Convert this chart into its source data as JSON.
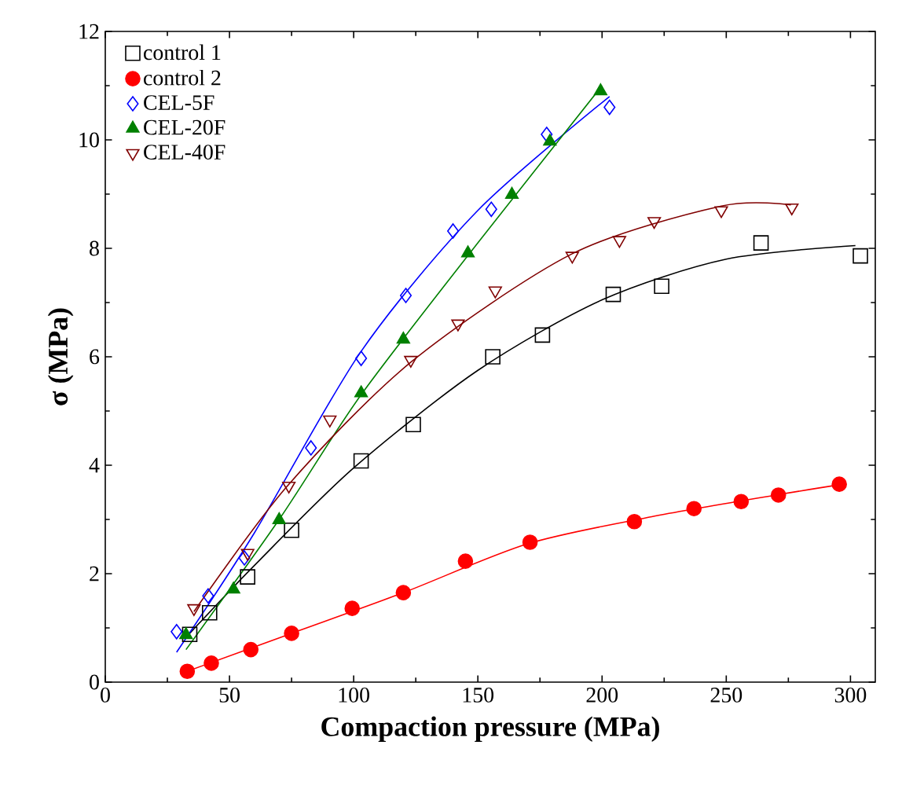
{
  "chart_data": {
    "type": "scatter",
    "xlabel": "Compaction pressure (MPa)",
    "ylabel": "σ (MPa)",
    "xlim": [
      0,
      310
    ],
    "ylim": [
      0,
      12
    ],
    "xticks": [
      0,
      50,
      100,
      150,
      200,
      250,
      300
    ],
    "yticks": [
      0,
      2,
      4,
      6,
      8,
      10,
      12
    ],
    "legend": "top left",
    "grid": false,
    "series": [
      {
        "name": "control 1",
        "color": "#000000",
        "marker": "square",
        "x": [
          34,
          42,
          57.3,
          75,
          103,
          124,
          156,
          176,
          204.5,
          224,
          264,
          304
        ],
        "values": [
          0.88,
          1.28,
          1.94,
          2.8,
          4.08,
          4.75,
          6.0,
          6.4,
          7.15,
          7.3,
          8.1,
          7.86
        ]
      },
      {
        "name": "control 2",
        "color": "#ff0000",
        "marker": "circle",
        "x": [
          33,
          42.7,
          58.6,
          75,
          99.4,
          120,
          145,
          171,
          213,
          237,
          256,
          271,
          295.5
        ],
        "values": [
          0.2,
          0.35,
          0.6,
          0.9,
          1.36,
          1.65,
          2.23,
          2.58,
          2.96,
          3.2,
          3.33,
          3.45,
          3.65
        ]
      },
      {
        "name": "CEL-5F",
        "color": "#0000ff",
        "marker": "diamond",
        "x": [
          28.7,
          41.4,
          56,
          82.8,
          103,
          121,
          140,
          155.4,
          177.7,
          203
        ],
        "values": [
          0.93,
          1.59,
          2.29,
          4.32,
          5.97,
          7.13,
          8.32,
          8.72,
          10.1,
          10.6
        ]
      },
      {
        "name": "CEL-20F",
        "color": "#008000",
        "marker": "triangle",
        "x": [
          32.5,
          51.6,
          70,
          103,
          120,
          146,
          163.7,
          179,
          199.4
        ],
        "values": [
          0.87,
          1.71,
          2.99,
          5.33,
          6.32,
          7.91,
          8.99,
          9.97,
          10.9
        ]
      },
      {
        "name": "CEL-40F",
        "color": "#800000",
        "marker": "triangle-down",
        "x": [
          35.7,
          57.3,
          73.9,
          90.4,
          123,
          142,
          157,
          188,
          207,
          221,
          248,
          276.4
        ],
        "values": [
          1.36,
          2.38,
          3.62,
          4.84,
          5.94,
          6.61,
          7.22,
          7.86,
          8.15,
          8.5,
          8.7,
          8.75
        ]
      },
      {
        "type": "line",
        "color": "#000000",
        "x": [
          33,
          60,
          100,
          150,
          200,
          250,
          302
        ],
        "values": [
          0.85,
          2.15,
          3.95,
          5.75,
          7.05,
          7.8,
          8.05
        ]
      },
      {
        "type": "line",
        "color": "#ff0000",
        "x": [
          33,
          75,
          120,
          170,
          220,
          270,
          297
        ],
        "values": [
          0.2,
          0.9,
          1.65,
          2.55,
          3.05,
          3.45,
          3.65
        ]
      },
      {
        "type": "line",
        "color": "#0000ff",
        "x": [
          28.7,
          60,
          103,
          150,
          203
        ],
        "values": [
          0.55,
          2.75,
          6.1,
          8.7,
          10.8
        ]
      },
      {
        "type": "line",
        "color": "#008000",
        "x": [
          32.5,
          70,
          103,
          150,
          200
        ],
        "values": [
          0.6,
          3.0,
          5.3,
          8.1,
          11.0
        ]
      },
      {
        "type": "line",
        "color": "#800000",
        "x": [
          35.7,
          73,
          123,
          188,
          248,
          276
        ],
        "values": [
          1.3,
          3.6,
          5.9,
          7.9,
          8.78,
          8.8
        ]
      }
    ]
  }
}
